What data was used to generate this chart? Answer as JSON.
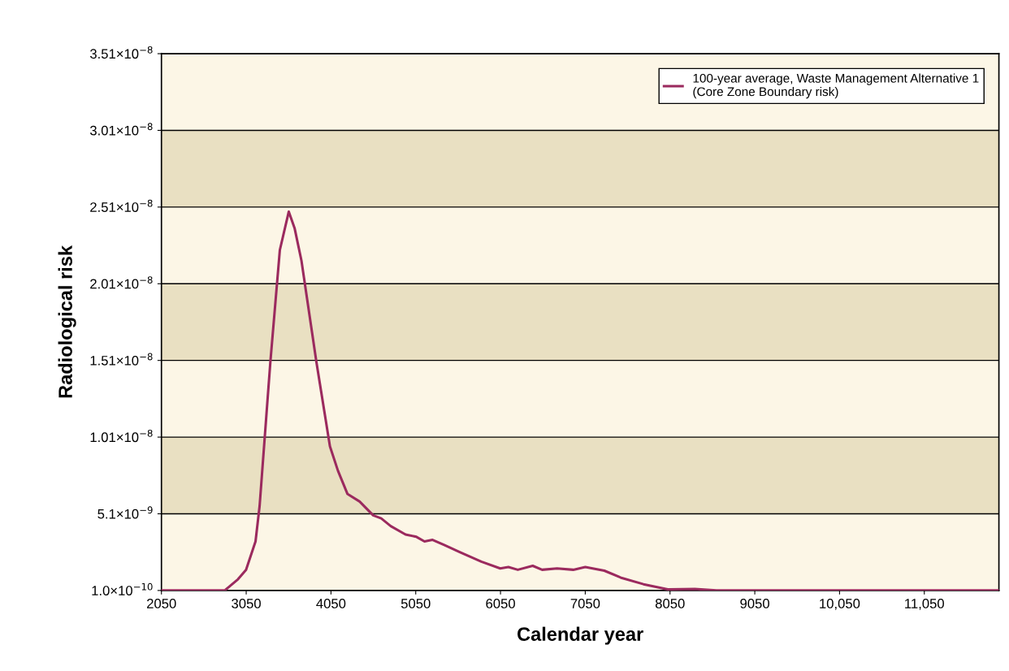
{
  "chart_data": {
    "type": "line",
    "xlabel": "Calendar year",
    "ylabel": "Radiological risk",
    "x": [
      2050,
      2796,
      2953,
      3048,
      3160,
      3208,
      3335,
      3447,
      3552,
      3622,
      3702,
      3878,
      4038,
      4133,
      4244,
      4388,
      4548,
      4643,
      4755,
      4930,
      5058,
      5153,
      5249,
      5392,
      5569,
      5824,
      6047,
      6143,
      6254,
      6430,
      6541,
      6717,
      6908,
      7050,
      7275,
      7482,
      7737,
      8024,
      8343,
      8598,
      11930
    ],
    "series": [
      {
        "name": "100-year average, Waste Management Alternative 1\n(Core Zone Boundary risk)",
        "color": "#9b2a5e",
        "values": [
          1e-10,
          1e-10,
          8.3e-10,
          1.45e-09,
          3.3e-09,
          5.6e-09,
          1.5e-08,
          2.23e-08,
          2.48e-08,
          2.37e-08,
          2.16e-08,
          1.5e-08,
          9.5e-09,
          7.9e-09,
          6.4e-09,
          5.9e-09,
          5e-09,
          4.8e-09,
          4.3e-09,
          3.75e-09,
          3.6e-09,
          3.3e-09,
          3.4e-09,
          3.05e-09,
          2.6e-09,
          1.98e-09,
          1.54e-09,
          1.63e-09,
          1.45e-09,
          1.71e-09,
          1.45e-09,
          1.54e-09,
          1.45e-09,
          1.63e-09,
          1.39e-09,
          9.1e-10,
          5.1e-10,
          1.7e-10,
          2e-10,
          1e-10,
          1e-10
        ]
      }
    ],
    "xlim": [
      2050,
      11930
    ],
    "xticks": [
      2050,
      3050,
      4050,
      5050,
      6050,
      7050,
      8050,
      9050,
      {
        "value": 10050,
        "label": "10,050"
      },
      {
        "value": 11050,
        "label": "11,050"
      }
    ],
    "ylim": [
      1e-10,
      3.51e-08
    ],
    "yticks": [
      {
        "value": 1e-10,
        "label": "1.0×10$^{−10}$"
      },
      {
        "value": 5.1e-09,
        "label": "5.1×10$^{−9}$"
      },
      {
        "value": 1.01e-08,
        "label": "1.01×10$^{−8}$"
      },
      {
        "value": 1.51e-08,
        "label": "1.51×10$^{−8}$"
      },
      {
        "value": 2.01e-08,
        "label": "2.01×10$^{−8}$"
      },
      {
        "value": 2.51e-08,
        "label": "2.51×10$^{−8}$"
      },
      {
        "value": 3.01e-08,
        "label": "3.01×10$^{−8}$"
      },
      {
        "value": 3.51e-08,
        "label": "3.51×10$^{−8}$"
      }
    ],
    "bands": [
      {
        "axis": "y",
        "from": 5.1e-09,
        "to": 1.01e-08,
        "color": "#e9e0c2"
      },
      {
        "axis": "y",
        "from": 1.51e-08,
        "to": 2.01e-08,
        "color": "#e9e0c2"
      },
      {
        "axis": "y",
        "from": 2.51e-08,
        "to": 3.01e-08,
        "color": "#e9e0c2"
      }
    ],
    "grid": "y",
    "legend": "top right",
    "marker": "none",
    "line_style": "solid"
  }
}
